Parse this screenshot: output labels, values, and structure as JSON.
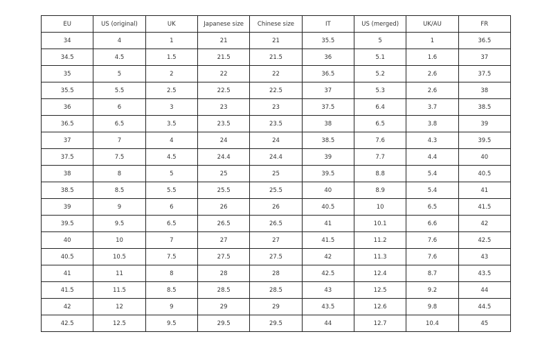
{
  "table": {
    "headers": [
      "EU",
      "US (original)",
      "UK",
      "Japanese size",
      "Chinese size",
      "IT",
      "US (merged)",
      "UK/AU",
      "FR"
    ],
    "rows": [
      [
        "34",
        "4",
        "1",
        "21",
        "21",
        "35.5",
        "5",
        "1",
        "36.5"
      ],
      [
        "34.5",
        "4.5",
        "1.5",
        "21.5",
        "21.5",
        "36",
        "5.1",
        "1.6",
        "37"
      ],
      [
        "35",
        "5",
        "2",
        "22",
        "22",
        "36.5",
        "5.2",
        "2.6",
        "37.5"
      ],
      [
        "35.5",
        "5.5",
        "2.5",
        "22.5",
        "22.5",
        "37",
        "5.3",
        "2.6",
        "38"
      ],
      [
        "36",
        "6",
        "3",
        "23",
        "23",
        "37.5",
        "6.4",
        "3.7",
        "38.5"
      ],
      [
        "36.5",
        "6.5",
        "3.5",
        "23.5",
        "23.5",
        "38",
        "6.5",
        "3.8",
        "39"
      ],
      [
        "37",
        "7",
        "4",
        "24",
        "24",
        "38.5",
        "7.6",
        "4.3",
        "39.5"
      ],
      [
        "37.5",
        "7.5",
        "4.5",
        "24.4",
        "24.4",
        "39",
        "7.7",
        "4.4",
        "40"
      ],
      [
        "38",
        "8",
        "5",
        "25",
        "25",
        "39.5",
        "8.8",
        "5.4",
        "40.5"
      ],
      [
        "38.5",
        "8.5",
        "5.5",
        "25.5",
        "25.5",
        "40",
        "8.9",
        "5.4",
        "41"
      ],
      [
        "39",
        "9",
        "6",
        "26",
        "26",
        "40.5",
        "10",
        "6.5",
        "41.5"
      ],
      [
        "39.5",
        "9.5",
        "6.5",
        "26.5",
        "26.5",
        "41",
        "10.1",
        "6.6",
        "42"
      ],
      [
        "40",
        "10",
        "7",
        "27",
        "27",
        "41.5",
        "11.2",
        "7.6",
        "42.5"
      ],
      [
        "40.5",
        "10.5",
        "7.5",
        "27.5",
        "27.5",
        "42",
        "11.3",
        "7.6",
        "43"
      ],
      [
        "41",
        "11",
        "8",
        "28",
        "28",
        "42.5",
        "12.4",
        "8.7",
        "43.5"
      ],
      [
        "41.5",
        "11.5",
        "8.5",
        "28.5",
        "28.5",
        "43",
        "12.5",
        "9.2",
        "44"
      ],
      [
        "42",
        "12",
        "9",
        "29",
        "29",
        "43.5",
        "12.6",
        "9.8",
        "44.5"
      ],
      [
        "42.5",
        "12.5",
        "9.5",
        "29.5",
        "29.5",
        "44",
        "12.7",
        "10.4",
        "45"
      ]
    ]
  }
}
